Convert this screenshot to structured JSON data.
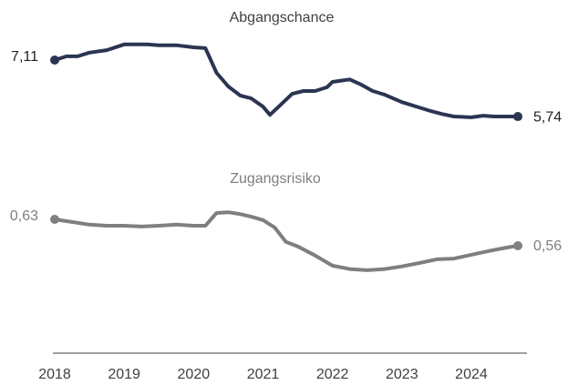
{
  "chart_data": [
    {
      "type": "line",
      "title": "Abgangschance",
      "color": "#2b3552",
      "x": [
        2018.0,
        2018.17,
        2018.33,
        2018.5,
        2018.75,
        2019.0,
        2019.17,
        2019.33,
        2019.5,
        2019.75,
        2020.0,
        2020.17,
        2020.33,
        2020.5,
        2020.67,
        2020.83,
        2021.0,
        2021.1,
        2021.25,
        2021.42,
        2021.58,
        2021.75,
        2021.92,
        2022.0,
        2022.25,
        2022.42,
        2022.58,
        2022.75,
        2023.0,
        2023.25,
        2023.42,
        2023.58,
        2023.75,
        2024.0,
        2024.17,
        2024.33,
        2024.5,
        2024.67
      ],
      "values": [
        7.11,
        7.2,
        7.2,
        7.29,
        7.35,
        7.49,
        7.49,
        7.49,
        7.47,
        7.47,
        7.42,
        7.4,
        6.8,
        6.47,
        6.25,
        6.18,
        5.98,
        5.78,
        6.02,
        6.29,
        6.36,
        6.36,
        6.45,
        6.58,
        6.64,
        6.51,
        6.36,
        6.27,
        6.09,
        5.96,
        5.87,
        5.8,
        5.74,
        5.72,
        5.76,
        5.74,
        5.74,
        5.74
      ],
      "value_labels": [
        "7,11",
        null,
        null,
        null,
        null,
        null,
        null,
        null,
        null,
        null,
        null,
        null,
        null,
        null,
        null,
        null,
        null,
        null,
        null,
        null,
        null,
        null,
        null,
        null,
        null,
        null,
        null,
        null,
        null,
        null,
        null,
        null,
        null,
        null,
        null,
        null,
        null,
        "5,74"
      ],
      "xlim": [
        2018,
        2024.67
      ],
      "ylim": [
        5.5,
        7.6
      ]
    },
    {
      "type": "line",
      "title": "Zugangsrisiko",
      "color": "#7f7f7f",
      "x": [
        2018.0,
        2018.25,
        2018.5,
        2018.75,
        2019.0,
        2019.25,
        2019.5,
        2019.75,
        2020.0,
        2020.17,
        2020.33,
        2020.5,
        2020.67,
        2020.83,
        2021.0,
        2021.17,
        2021.33,
        2021.5,
        2021.75,
        2022.0,
        2022.25,
        2022.5,
        2022.75,
        2023.0,
        2023.25,
        2023.5,
        2023.75,
        2024.0,
        2024.25,
        2024.5,
        2024.67
      ],
      "values": [
        0.63,
        0.623,
        0.616,
        0.613,
        0.613,
        0.611,
        0.613,
        0.616,
        0.613,
        0.613,
        0.647,
        0.649,
        0.644,
        0.637,
        0.628,
        0.608,
        0.57,
        0.558,
        0.534,
        0.507,
        0.498,
        0.495,
        0.498,
        0.505,
        0.514,
        0.524,
        0.526,
        0.536,
        0.546,
        0.555,
        0.56
      ],
      "value_labels": [
        "0,63",
        null,
        null,
        null,
        null,
        null,
        null,
        null,
        null,
        null,
        null,
        null,
        null,
        null,
        null,
        null,
        null,
        null,
        null,
        null,
        null,
        null,
        null,
        null,
        null,
        null,
        null,
        null,
        null,
        null,
        "0,56"
      ],
      "xlim": [
        2018,
        2024.67
      ],
      "ylim": [
        0.45,
        0.66
      ],
      "xticks": [
        2018,
        2019,
        2020,
        2021,
        2022,
        2023,
        2024
      ]
    }
  ]
}
